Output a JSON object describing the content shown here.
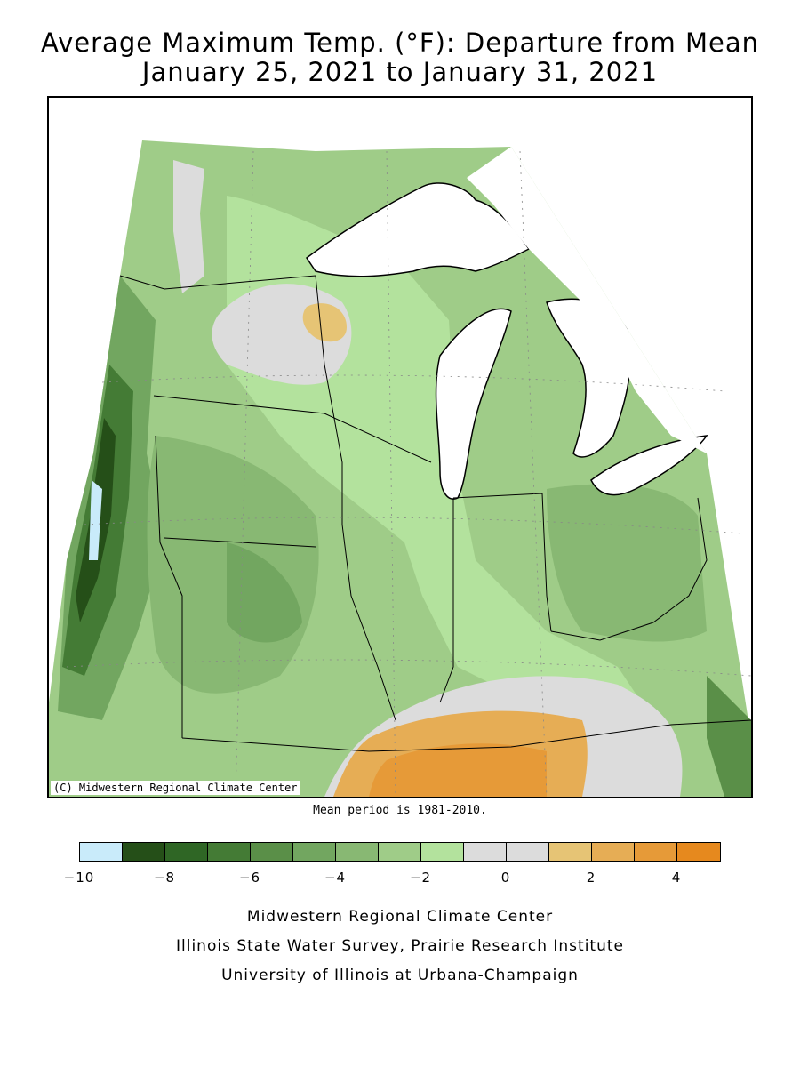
{
  "title": {
    "line1": "Average Maximum Temp. (°F): Departure from Mean",
    "line2": "January 25, 2021 to January 31, 2021"
  },
  "map": {
    "copyright": "(C) Midwestern Regional Climate Center",
    "mean_note": "Mean period is 1981-2010."
  },
  "legend": {
    "colors": [
      "#c9ebfa",
      "#254f18",
      "#2f6625",
      "#447b35",
      "#5a8f48",
      "#72a660",
      "#88b873",
      "#9fcc88",
      "#b3e29d",
      "#dcdcdc",
      "#dcdcdc",
      "#e6c475",
      "#e6ad55",
      "#e69a38",
      "#e6891e"
    ],
    "labels": [
      "-10",
      "-8",
      "-6",
      "-4",
      "-2",
      "0",
      "2",
      "4"
    ]
  },
  "footer": {
    "line1": "Midwestern Regional Climate Center",
    "line2": "Illinois State Water Survey, Prairie Research Institute",
    "line3": "University of Illinois at Urbana-Champaign"
  }
}
